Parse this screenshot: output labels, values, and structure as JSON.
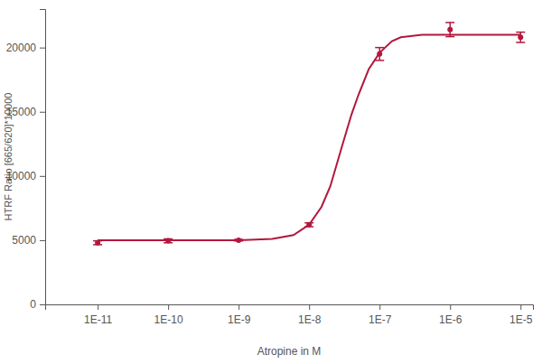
{
  "chart_data": {
    "type": "scatter",
    "x_label": "Atropine in M",
    "y_label": "HTRF Ratio [665/620]*10000",
    "log": "x",
    "grid": false,
    "xlim": [
      1.8e-12,
      1.5e-05
    ],
    "xticks": [
      {
        "value": 1e-11,
        "label": "1E-11"
      },
      {
        "value": 1e-10,
        "label": "1E-10"
      },
      {
        "value": 1e-09,
        "label": "1E-9"
      },
      {
        "value": 1e-08,
        "label": "1E-8"
      },
      {
        "value": 1e-07,
        "label": "1E-7"
      },
      {
        "value": 1e-06,
        "label": "1E-6"
      },
      {
        "value": 1e-05,
        "label": "1E-5"
      }
    ],
    "ylim": [
      0,
      23000
    ],
    "yticks": [
      0,
      5000,
      10000,
      15000,
      20000
    ],
    "series": [
      {
        "type": "line",
        "color": "#b3173d",
        "line_style": "solid",
        "x": [
          1e-11,
          1e-09,
          3e-09,
          6e-09,
          1e-08,
          1.5e-08,
          2e-08,
          3e-08,
          4e-08,
          5e-08,
          7e-08,
          1e-07,
          1.5e-07,
          2e-07,
          4e-07,
          1e-05
        ],
        "values": [
          5000,
          5000,
          5100,
          5400,
          6200,
          7600,
          9200,
          12500,
          14800,
          16300,
          18300,
          19600,
          20500,
          20800,
          21000,
          21000
        ]
      },
      {
        "type": "scatter",
        "color": "#b3173d",
        "marker": "circle",
        "x": [
          1e-11,
          1e-10,
          1e-09,
          1e-08,
          1e-07,
          1e-06,
          1e-05
        ],
        "values": [
          4800,
          4950,
          5000,
          6200,
          19500,
          21400,
          20800
        ],
        "errors": [
          150,
          150,
          60,
          150,
          500,
          550,
          400
        ]
      }
    ]
  }
}
